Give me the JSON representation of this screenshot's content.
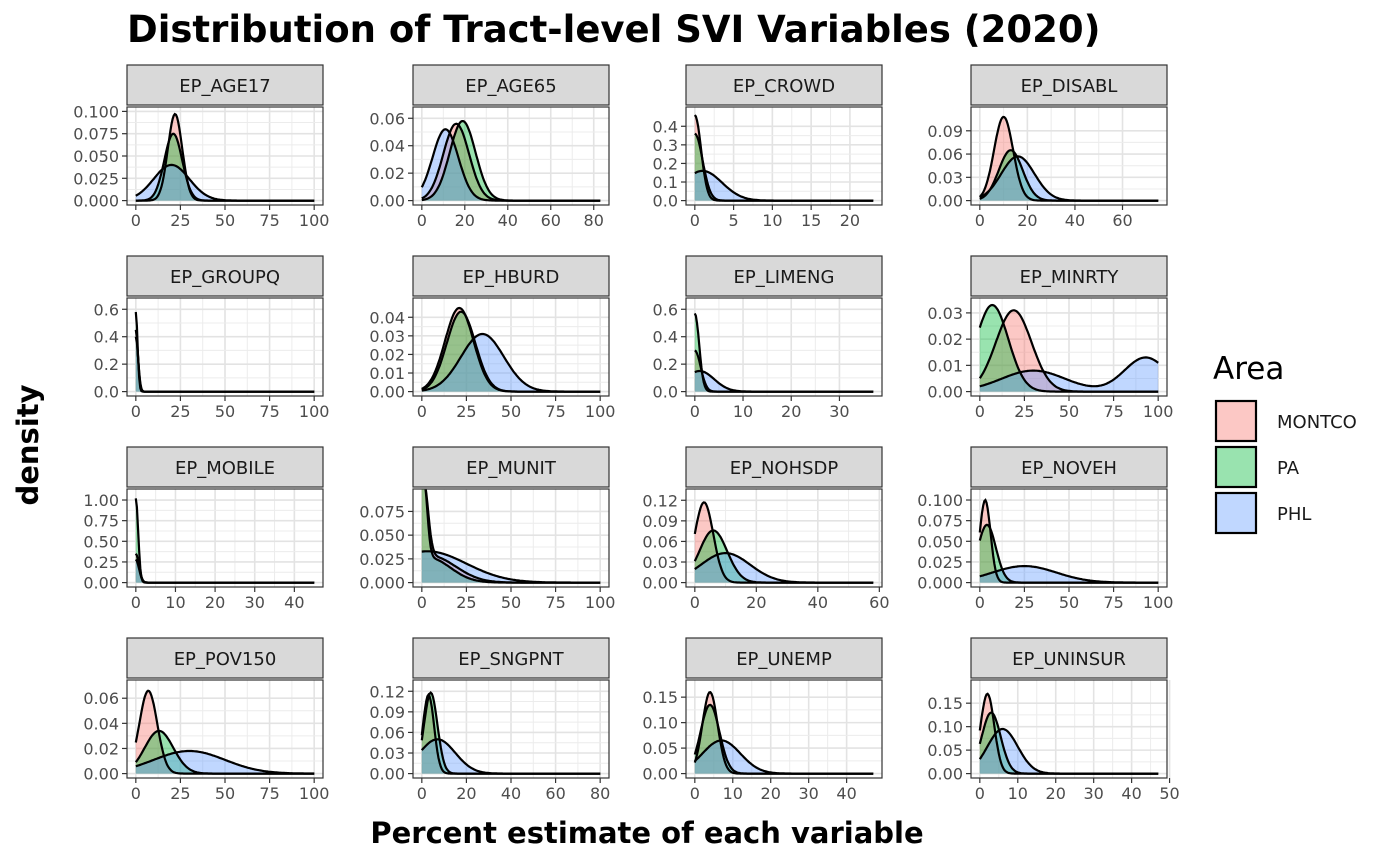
{
  "title": "Distribution of Tract-level SVI Variables (2020)",
  "legend": {
    "title": "Area",
    "position": "right",
    "items": [
      {
        "label": "MONTCO",
        "color": "#F8766D"
      },
      {
        "label": "PA",
        "color": "#00BA38"
      },
      {
        "label": "PHL",
        "color": "#619CFF"
      }
    ]
  },
  "chart_data": {
    "type": "area",
    "title": "Distribution of Tract-level SVI Variables (2020)",
    "xlabel": "Percent estimate of each variable",
    "ylabel": "density",
    "grid": true,
    "facets": [
      {
        "name": "EP_AGE17",
        "xlim": [
          0,
          100
        ],
        "ylim": [
          0,
          0.1
        ],
        "xticks": [
          "0",
          "25",
          "50",
          "75",
          "100"
        ],
        "yticks": [
          "0.000",
          "0.025",
          "0.050",
          "0.075",
          "0.100"
        ],
        "series": [
          {
            "name": "MONTCO",
            "peaks": [
              {
                "mu": 22,
                "sd": 4,
                "h": 0.097
              }
            ]
          },
          {
            "name": "PA",
            "peaks": [
              {
                "mu": 21,
                "sd": 5,
                "h": 0.075
              }
            ]
          },
          {
            "name": "PHL",
            "peaks": [
              {
                "mu": 20,
                "sd": 10,
                "h": 0.04
              }
            ]
          }
        ]
      },
      {
        "name": "EP_AGE65",
        "xlim": [
          0,
          83
        ],
        "ylim": [
          0,
          0.065
        ],
        "xticks": [
          "0",
          "20",
          "40",
          "60",
          "80"
        ],
        "yticks": [
          "0.00",
          "0.02",
          "0.04",
          "0.06"
        ],
        "series": [
          {
            "name": "MONTCO",
            "peaks": [
              {
                "mu": 16,
                "sd": 6,
                "h": 0.056
              }
            ]
          },
          {
            "name": "PA",
            "peaks": [
              {
                "mu": 19,
                "sd": 6,
                "h": 0.058
              }
            ]
          },
          {
            "name": "PHL",
            "peaks": [
              {
                "mu": 11,
                "sd": 6,
                "h": 0.052
              }
            ]
          }
        ]
      },
      {
        "name": "EP_CROWD",
        "xlim": [
          0,
          23
        ],
        "ylim": [
          0,
          0.48
        ],
        "xticks": [
          "0",
          "5",
          "10",
          "15",
          "20"
        ],
        "yticks": [
          "0.0",
          "0.1",
          "0.2",
          "0.3",
          "0.4"
        ],
        "series": [
          {
            "name": "MONTCO",
            "peaks": [
              {
                "mu": 0,
                "sd": 0.8,
                "h": 0.46
              }
            ]
          },
          {
            "name": "PA",
            "peaks": [
              {
                "mu": 0,
                "sd": 1.0,
                "h": 0.36
              }
            ]
          },
          {
            "name": "PHL",
            "peaks": [
              {
                "mu": 1.0,
                "sd": 2.5,
                "h": 0.16
              }
            ]
          }
        ]
      },
      {
        "name": "EP_DISABL",
        "xlim": [
          0,
          75
        ],
        "ylim": [
          0,
          0.115
        ],
        "xticks": [
          "0",
          "20",
          "40",
          "60"
        ],
        "yticks": [
          "0.00",
          "0.03",
          "0.06",
          "0.09"
        ],
        "series": [
          {
            "name": "MONTCO",
            "peaks": [
              {
                "mu": 10,
                "sd": 4,
                "h": 0.108
              }
            ]
          },
          {
            "name": "PA",
            "peaks": [
              {
                "mu": 13,
                "sd": 5,
                "h": 0.065
              }
            ]
          },
          {
            "name": "PHL",
            "peaks": [
              {
                "mu": 16,
                "sd": 7,
                "h": 0.057
              }
            ]
          }
        ]
      },
      {
        "name": "EP_GROUPQ",
        "xlim": [
          0,
          100
        ],
        "ylim": [
          0,
          0.65
        ],
        "xticks": [
          "0",
          "25",
          "50",
          "75",
          "100"
        ],
        "yticks": [
          "0.0",
          "0.2",
          "0.4",
          "0.6"
        ],
        "series": [
          {
            "name": "MONTCO",
            "peaks": [
              {
                "mu": 0,
                "sd": 1.2,
                "h": 0.45
              }
            ]
          },
          {
            "name": "PA",
            "peaks": [
              {
                "mu": 0,
                "sd": 1.0,
                "h": 0.58
              }
            ]
          },
          {
            "name": "PHL",
            "peaks": [
              {
                "mu": 0,
                "sd": 1.3,
                "h": 0.4
              }
            ]
          }
        ]
      },
      {
        "name": "EP_HBURD",
        "xlim": [
          0,
          100
        ],
        "ylim": [
          0,
          0.048
        ],
        "xticks": [
          "0",
          "25",
          "50",
          "75",
          "100"
        ],
        "yticks": [
          "0.00",
          "0.01",
          "0.02",
          "0.03",
          "0.04"
        ],
        "series": [
          {
            "name": "MONTCO",
            "peaks": [
              {
                "mu": 21,
                "sd": 8,
                "h": 0.045
              }
            ]
          },
          {
            "name": "PA",
            "peaks": [
              {
                "mu": 22,
                "sd": 8,
                "h": 0.043
              }
            ]
          },
          {
            "name": "PHL",
            "peaks": [
              {
                "mu": 34,
                "sd": 12,
                "h": 0.031
              }
            ]
          }
        ]
      },
      {
        "name": "EP_LIMENG",
        "xlim": [
          0,
          37
        ],
        "ylim": [
          0,
          0.65
        ],
        "xticks": [
          "0",
          "10",
          "20",
          "30"
        ],
        "yticks": [
          "0.0",
          "0.2",
          "0.4",
          "0.6"
        ],
        "series": [
          {
            "name": "MONTCO",
            "peaks": [
              {
                "mu": 0,
                "sd": 1.2,
                "h": 0.3
              }
            ]
          },
          {
            "name": "PA",
            "peaks": [
              {
                "mu": 0,
                "sd": 0.9,
                "h": 0.57
              }
            ]
          },
          {
            "name": "PHL",
            "peaks": [
              {
                "mu": 1.0,
                "sd": 3.0,
                "h": 0.15
              }
            ]
          }
        ]
      },
      {
        "name": "EP_MINRTY",
        "xlim": [
          0,
          100
        ],
        "ylim": [
          0,
          0.034
        ],
        "xticks": [
          "0",
          "25",
          "50",
          "75",
          "100"
        ],
        "yticks": [
          "0.00",
          "0.01",
          "0.02",
          "0.03"
        ],
        "series": [
          {
            "name": "MONTCO",
            "peaks": [
              {
                "mu": 19,
                "sd": 10,
                "h": 0.031
              }
            ]
          },
          {
            "name": "PA",
            "peaks": [
              {
                "mu": 7,
                "sd": 9,
                "h": 0.033
              }
            ]
          },
          {
            "name": "PHL",
            "peaks": [
              {
                "mu": 30,
                "sd": 18,
                "h": 0.008
              },
              {
                "mu": 93,
                "sd": 12,
                "h": 0.013
              }
            ]
          }
        ]
      },
      {
        "name": "EP_MOBILE",
        "xlim": [
          0,
          45
        ],
        "ylim": [
          0,
          1.08
        ],
        "xticks": [
          "0",
          "10",
          "20",
          "30",
          "40"
        ],
        "yticks": [
          "0.00",
          "0.25",
          "0.50",
          "0.75",
          "1.00"
        ],
        "series": [
          {
            "name": "MONTCO",
            "peaks": [
              {
                "mu": 0,
                "sd": 0.8,
                "h": 0.35
              }
            ]
          },
          {
            "name": "PA",
            "peaks": [
              {
                "mu": 0,
                "sd": 0.6,
                "h": 1.02
              }
            ]
          },
          {
            "name": "PHL",
            "peaks": [
              {
                "mu": 0,
                "sd": 0.8,
                "h": 0.28
              }
            ]
          }
        ]
      },
      {
        "name": "EP_MUNIT",
        "xlim": [
          0,
          100
        ],
        "ylim": [
          0,
          0.094
        ],
        "xticks": [
          "0",
          "25",
          "50",
          "75",
          "100"
        ],
        "yticks": [
          "0.000",
          "0.025",
          "0.050",
          "0.075"
        ],
        "series": [
          {
            "name": "MONTCO",
            "peaks": [
              {
                "mu": 1,
                "sd": 2.5,
                "h": 0.08
              },
              {
                "mu": 5,
                "sd": 14,
                "h": 0.028
              }
            ]
          },
          {
            "name": "PA",
            "peaks": [
              {
                "mu": 1,
                "sd": 2,
                "h": 0.085
              },
              {
                "mu": 4,
                "sd": 12,
                "h": 0.026
              }
            ]
          },
          {
            "name": "PHL",
            "peaks": [
              {
                "mu": 3,
                "sd": 22,
                "h": 0.033
              }
            ]
          }
        ]
      },
      {
        "name": "EP_NOHSDP",
        "xlim": [
          0,
          58
        ],
        "ylim": [
          0,
          0.13
        ],
        "xticks": [
          "0",
          "20",
          "40",
          "60"
        ],
        "yticks": [
          "0.00",
          "0.03",
          "0.06",
          "0.09",
          "0.12"
        ],
        "series": [
          {
            "name": "MONTCO",
            "peaks": [
              {
                "mu": 3,
                "sd": 3,
                "h": 0.117
              }
            ]
          },
          {
            "name": "PA",
            "peaks": [
              {
                "mu": 6,
                "sd": 4.5,
                "h": 0.076
              }
            ]
          },
          {
            "name": "PHL",
            "peaks": [
              {
                "mu": 10,
                "sd": 8,
                "h": 0.043
              }
            ]
          }
        ]
      },
      {
        "name": "EP_NOVEH",
        "xlim": [
          0,
          100
        ],
        "ylim": [
          0,
          0.108
        ],
        "xticks": [
          "0",
          "25",
          "50",
          "75",
          "100"
        ],
        "yticks": [
          "0.000",
          "0.025",
          "0.050",
          "0.075",
          "0.100"
        ],
        "series": [
          {
            "name": "MONTCO",
            "peaks": [
              {
                "mu": 3,
                "sd": 3,
                "h": 0.1
              }
            ]
          },
          {
            "name": "PA",
            "peaks": [
              {
                "mu": 4,
                "sd": 5,
                "h": 0.07
              }
            ]
          },
          {
            "name": "PHL",
            "peaks": [
              {
                "mu": 25,
                "sd": 18,
                "h": 0.02
              }
            ]
          }
        ]
      },
      {
        "name": "EP_POV150",
        "xlim": [
          0,
          100
        ],
        "ylim": [
          0,
          0.071
        ],
        "xticks": [
          "0",
          "25",
          "50",
          "75",
          "100"
        ],
        "yticks": [
          "0.00",
          "0.02",
          "0.04",
          "0.06"
        ],
        "series": [
          {
            "name": "MONTCO",
            "peaks": [
              {
                "mu": 7,
                "sd": 5,
                "h": 0.066
              }
            ]
          },
          {
            "name": "PA",
            "peaks": [
              {
                "mu": 13,
                "sd": 8,
                "h": 0.034
              }
            ]
          },
          {
            "name": "PHL",
            "peaks": [
              {
                "mu": 30,
                "sd": 20,
                "h": 0.018
              }
            ]
          }
        ]
      },
      {
        "name": "EP_SNGPNT",
        "xlim": [
          0,
          80
        ],
        "ylim": [
          0,
          0.13
        ],
        "xticks": [
          "0",
          "20",
          "40",
          "60",
          "80"
        ],
        "yticks": [
          "0.00",
          "0.03",
          "0.06",
          "0.09",
          "0.12"
        ],
        "series": [
          {
            "name": "MONTCO",
            "peaks": [
              {
                "mu": 3,
                "sd": 2.5,
                "h": 0.115
              }
            ]
          },
          {
            "name": "PA",
            "peaks": [
              {
                "mu": 4,
                "sd": 3,
                "h": 0.118
              }
            ]
          },
          {
            "name": "PHL",
            "peaks": [
              {
                "mu": 7,
                "sd": 8,
                "h": 0.05
              }
            ]
          }
        ]
      },
      {
        "name": "EP_UNEMP",
        "xlim": [
          0,
          47
        ],
        "ylim": [
          0,
          0.175
        ],
        "xticks": [
          "0",
          "10",
          "20",
          "30",
          "40"
        ],
        "yticks": [
          "0.00",
          "0.05",
          "0.10",
          "0.15"
        ],
        "series": [
          {
            "name": "MONTCO",
            "peaks": [
              {
                "mu": 4,
                "sd": 2,
                "h": 0.16
              }
            ]
          },
          {
            "name": "PA",
            "peaks": [
              {
                "mu": 4,
                "sd": 2.5,
                "h": 0.135
              }
            ]
          },
          {
            "name": "PHL",
            "peaks": [
              {
                "mu": 7,
                "sd": 5,
                "h": 0.065
              }
            ]
          }
        ]
      },
      {
        "name": "EP_UNINSUR",
        "xlim": [
          0,
          47
        ],
        "ylim": [
          0,
          0.19
        ],
        "xticks": [
          "0",
          "10",
          "20",
          "30",
          "40",
          "50"
        ],
        "yticks": [
          "0.00",
          "0.05",
          "0.10",
          "0.15"
        ],
        "series": [
          {
            "name": "MONTCO",
            "peaks": [
              {
                "mu": 2,
                "sd": 1.8,
                "h": 0.17
              }
            ]
          },
          {
            "name": "PA",
            "peaks": [
              {
                "mu": 3,
                "sd": 2.5,
                "h": 0.13
              }
            ]
          },
          {
            "name": "PHL",
            "peaks": [
              {
                "mu": 6,
                "sd": 4,
                "h": 0.095
              }
            ]
          }
        ]
      }
    ]
  }
}
